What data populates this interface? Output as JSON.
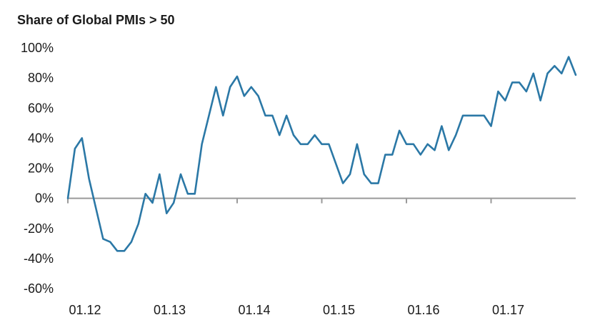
{
  "chart_data": {
    "type": "line",
    "title": "Share of Global PMIs > 50",
    "xlabel": "",
    "ylabel": "",
    "ylim": [
      -60,
      100
    ],
    "yticks": [
      "100%",
      "80%",
      "60%",
      "40%",
      "20%",
      "0%",
      "-20%",
      "-40%",
      "-60%"
    ],
    "ytick_values": [
      100,
      80,
      60,
      40,
      20,
      0,
      -20,
      -40,
      -60
    ],
    "xticks": [
      "01.12",
      "01.13",
      "01.14",
      "01.15",
      "01.16",
      "01.17"
    ],
    "grid": false,
    "line_color": "#2b78a6",
    "series": [
      {
        "x": [
          "01.12",
          "02.12",
          "03.12",
          "04.12",
          "05.12",
          "06.12",
          "07.12",
          "08.12",
          "09.12",
          "10.12",
          "11.12",
          "12.12",
          "01.13",
          "02.13",
          "03.13",
          "04.13",
          "05.13",
          "06.13",
          "07.13",
          "08.13",
          "09.13",
          "10.13",
          "11.13",
          "12.13",
          "01.14",
          "02.14",
          "03.14",
          "04.14",
          "05.14",
          "06.14",
          "07.14",
          "08.14",
          "09.14",
          "10.14",
          "11.14",
          "12.14",
          "01.15",
          "02.15",
          "03.15",
          "04.15",
          "05.15",
          "06.15",
          "07.15",
          "08.15",
          "09.15",
          "10.15",
          "11.15",
          "12.15",
          "01.16",
          "02.16",
          "03.16",
          "04.16",
          "05.16",
          "06.16",
          "07.16",
          "08.16",
          "09.16",
          "10.16",
          "11.16",
          "12.16",
          "01.17",
          "02.17",
          "03.17",
          "04.17",
          "05.17",
          "06.17",
          "07.17",
          "08.17",
          "09.17",
          "10.17",
          "11.17",
          "12.17"
        ],
        "values": [
          0,
          33,
          40,
          13,
          -7,
          -27,
          -29,
          -35,
          -35,
          -29,
          -17,
          3,
          -3,
          16,
          -10,
          -3,
          16,
          3,
          3,
          36,
          55,
          74,
          55,
          74,
          81,
          68,
          74,
          68,
          55,
          55,
          42,
          55,
          42,
          36,
          36,
          42,
          36,
          36,
          23,
          10,
          16,
          36,
          16,
          10,
          10,
          29,
          29,
          45,
          36,
          36,
          29,
          36,
          32,
          48,
          32,
          42,
          55,
          55,
          55,
          55,
          48,
          71,
          65,
          77,
          77,
          71,
          83,
          65,
          83,
          88,
          83,
          94
        ]
      },
      {
        "x": [
          "12.17"
        ],
        "values": [
          82
        ]
      }
    ]
  }
}
